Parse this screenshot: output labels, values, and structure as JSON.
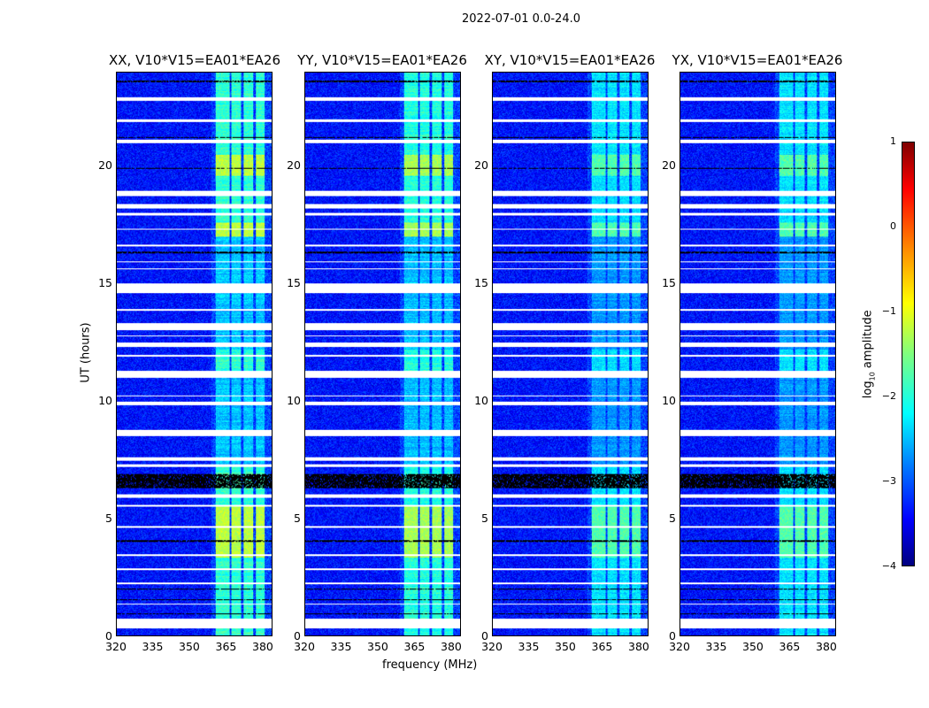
{
  "suptitle": "2022-07-01 0.0-24.0",
  "chart_data": {
    "type": "heatmap",
    "xlabel": "frequency (MHz)",
    "ylabel": "UT (hours)",
    "xlim": [
      320,
      384
    ],
    "ylim": [
      0,
      24
    ],
    "xticks": [
      "320",
      "335",
      "350",
      "365",
      "380"
    ],
    "xtick_values": [
      320,
      335,
      350,
      365,
      380
    ],
    "yticks": [
      "0",
      "5",
      "10",
      "15",
      "20"
    ],
    "ytick_values": [
      0,
      5,
      10,
      15,
      20
    ],
    "panels": [
      {
        "title": "XX, V10*V15=EA01*EA26",
        "band_strength": 1.0
      },
      {
        "title": "YY, V10*V15=EA01*EA26",
        "band_strength": 0.95
      },
      {
        "title": "XY, V10*V15=EA01*EA26",
        "band_strength": 0.75
      },
      {
        "title": "YX, V10*V15=EA01*EA26",
        "band_strength": 0.75
      }
    ],
    "background_log_amplitude": -3.3,
    "rfi_band_mhz": [
      [
        361,
        366.5
      ],
      [
        367.5,
        371.5
      ],
      [
        372.5,
        376.5
      ],
      [
        377.5,
        381
      ]
    ],
    "strong_rfi_hours": [
      [
        3.3,
        5.5
      ],
      [
        17.0,
        17.6
      ],
      [
        19.6,
        20.5
      ]
    ],
    "flagged_hours": [
      [
        0.3,
        0.7
      ],
      [
        1.3,
        1.35
      ],
      [
        2.2,
        2.25
      ],
      [
        2.8,
        2.85
      ],
      [
        3.4,
        3.45
      ],
      [
        4.6,
        4.65
      ],
      [
        5.5,
        5.55
      ],
      [
        5.85,
        6.0
      ],
      [
        7.2,
        7.3
      ],
      [
        7.45,
        7.6
      ],
      [
        8.5,
        8.75
      ],
      [
        9.8,
        9.95
      ],
      [
        10.2,
        10.25
      ],
      [
        11.0,
        11.3
      ],
      [
        11.9,
        11.95
      ],
      [
        12.3,
        12.5
      ],
      [
        12.75,
        12.8
      ],
      [
        13.0,
        13.3
      ],
      [
        13.85,
        13.9
      ],
      [
        14.6,
        15.0
      ],
      [
        15.6,
        15.65
      ],
      [
        15.9,
        15.95
      ],
      [
        16.6,
        16.65
      ],
      [
        17.3,
        17.35
      ],
      [
        17.9,
        18.0
      ],
      [
        18.2,
        18.4
      ],
      [
        18.75,
        18.95
      ],
      [
        21.0,
        21.15
      ],
      [
        21.9,
        22.0
      ],
      [
        22.8,
        22.95
      ]
    ],
    "black_line_hours": [
      [
        0.9,
        0.95
      ],
      [
        1.5,
        1.55
      ],
      [
        1.95,
        2.0
      ],
      [
        4.0,
        4.05
      ],
      [
        6.3,
        6.9
      ],
      [
        15.3,
        15.32
      ],
      [
        16.3,
        16.35
      ],
      [
        19.9,
        19.95
      ],
      [
        21.2,
        21.25
      ],
      [
        23.6,
        23.65
      ]
    ],
    "colorbar": {
      "label": "log10 amplitude",
      "label_main": "log",
      "label_sub": "10",
      "label_rest": " amplitude",
      "range": [
        -4,
        1
      ],
      "ticks": [
        "1",
        "0",
        "−1",
        "−2",
        "−3",
        "−4"
      ],
      "tick_values": [
        1,
        0,
        -1,
        -2,
        -3,
        -4
      ],
      "colormap": "jet"
    }
  }
}
